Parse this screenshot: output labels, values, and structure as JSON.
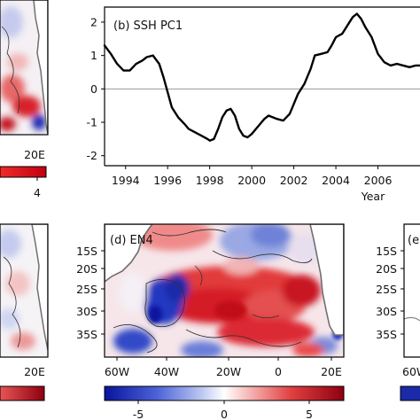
{
  "chart_data": [
    {
      "type": "line",
      "panel": "b",
      "title": "(b) SSH PC1",
      "xlabel": "Year",
      "ylabel": "",
      "xlim": [
        1993.0,
        2008.0
      ],
      "ylim": [
        -2.3,
        2.45
      ],
      "xticks": [
        1994,
        1996,
        1998,
        2000,
        2002,
        2004,
        2006
      ],
      "xtick_labels": [
        "1994",
        "1996",
        "1998",
        "2000",
        "2002",
        "2004",
        "2006"
      ],
      "yticks": [
        2,
        1,
        0,
        -1,
        -2
      ],
      "ytick_labels": [
        "2",
        "1",
        "0",
        "-1",
        "-2"
      ],
      "zero_line": true,
      "grid": false,
      "series": [
        {
          "x": [
            1993.0,
            1993.3,
            1993.6,
            1993.9,
            1994.2,
            1994.5,
            1994.8,
            1995.0,
            1995.3,
            1995.6,
            1995.8,
            1996.0,
            1996.2,
            1996.5,
            1996.8,
            1997.0,
            1997.3,
            1997.6,
            1997.9,
            1998.0,
            1998.2,
            1998.4,
            1998.6,
            1998.8,
            1999.0,
            1999.2,
            1999.4,
            1999.6,
            1999.8,
            2000.0,
            2000.2,
            2000.4,
            2000.6,
            2000.8,
            2001.0,
            2001.2,
            2001.5,
            2001.8,
            2002.0,
            2002.2,
            2002.5,
            2002.8,
            2003.0,
            2003.3,
            2003.6,
            2003.8,
            2004.0,
            2004.3,
            2004.6,
            2004.8,
            2005.0,
            2005.2,
            2005.4,
            2005.7,
            2006.0,
            2006.3,
            2006.6,
            2006.9,
            2007.2,
            2007.5,
            2007.8,
            2008.0
          ],
          "y": [
            1.3,
            1.05,
            0.75,
            0.55,
            0.55,
            0.75,
            0.85,
            0.95,
            1.0,
            0.75,
            0.35,
            -0.1,
            -0.55,
            -0.85,
            -1.05,
            -1.2,
            -1.3,
            -1.4,
            -1.5,
            -1.55,
            -1.5,
            -1.2,
            -0.85,
            -0.65,
            -0.6,
            -0.8,
            -1.2,
            -1.4,
            -1.45,
            -1.35,
            -1.2,
            -1.05,
            -0.9,
            -0.8,
            -0.85,
            -0.9,
            -0.95,
            -0.75,
            -0.45,
            -0.15,
            0.15,
            0.6,
            1.0,
            1.05,
            1.1,
            1.3,
            1.55,
            1.65,
            1.95,
            2.15,
            2.25,
            2.1,
            1.85,
            1.55,
            1.05,
            0.8,
            0.7,
            0.75,
            0.7,
            0.65,
            0.7,
            0.7
          ]
        }
      ]
    },
    {
      "type": "heatmap",
      "panel": "d",
      "title": "(d) EN4",
      "xlabel": "",
      "ylabel": "",
      "lon_range": [
        "60W",
        "20E"
      ],
      "lat_range": [
        "12S",
        "38S"
      ],
      "xtick_labels": [
        "60W",
        "40W",
        "20W",
        "0",
        "20E"
      ],
      "ytick_labels": [
        "15S",
        "20S",
        "25S",
        "30S",
        "35S"
      ],
      "colorbar": {
        "ticks": [
          "-5",
          "0",
          "5"
        ],
        "min": -7,
        "max": 7,
        "colormap": "blue-white-red"
      },
      "pattern": "warm (red) anomalies across central and southern basin, cool (blue) anomalies near 15S and along South American coast around 30S"
    },
    {
      "type": "heatmap",
      "panel": "a",
      "title": "",
      "xtick_labels": [
        "20E"
      ],
      "colorbar": {
        "ticks": [
          "4"
        ]
      }
    },
    {
      "type": "heatmap",
      "panel": "c",
      "title": "",
      "xtick_labels": [
        "20E"
      ]
    },
    {
      "type": "heatmap",
      "panel": "e",
      "title": "(e",
      "xtick_labels": [
        "60W"
      ],
      "ytick_labels": [
        "15S",
        "20S",
        "25S",
        "30S",
        "35S"
      ]
    }
  ],
  "colors": {
    "line": "#000000",
    "zero_line": "#9a9a9a",
    "coast": "#6e6e6e",
    "land": "#ffffff",
    "warm": "#c8102e",
    "cool": "#1530b0"
  }
}
